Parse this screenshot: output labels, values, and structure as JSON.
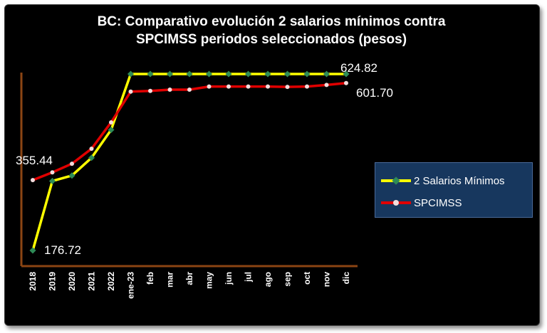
{
  "chart_data": {
    "type": "line",
    "title_lines": [
      "BC: Comparativo  evolución 2 salarios mínimos contra",
      "SPCIMSS periodos seleccionados (pesos)"
    ],
    "categories": [
      "2018",
      "2019",
      "2020",
      "2021",
      "2022",
      "ene-23",
      "feb",
      "mar",
      "abr",
      "may",
      "jun",
      "jul",
      "ago",
      "sep",
      "oct",
      "nov",
      "dic"
    ],
    "series": [
      {
        "name": "2 Salarios Mínimos",
        "color": "#ffff00",
        "marker_color": "#2e8b57",
        "values": [
          176.72,
          353.0,
          367.0,
          412.0,
          483.0,
          624.82,
          624.82,
          624.82,
          624.82,
          624.82,
          624.82,
          624.82,
          624.82,
          624.82,
          624.82,
          624.82,
          624.82
        ]
      },
      {
        "name": "SPCIMSS",
        "color": "#e00000",
        "marker_color": "#f2dcdc",
        "values": [
          355.44,
          375.0,
          397.0,
          435.0,
          502.0,
          580.0,
          582.0,
          585.0,
          585.0,
          593.0,
          593.0,
          593.0,
          593.0,
          592.0,
          593.0,
          597.0,
          601.7
        ]
      }
    ],
    "data_labels": [
      {
        "series": 0,
        "index": 0,
        "text": "176.72"
      },
      {
        "series": 1,
        "index": 0,
        "text": "355.44"
      },
      {
        "series": 0,
        "index": 16,
        "text": "624.82"
      },
      {
        "series": 1,
        "index": 16,
        "text": "601.70"
      }
    ],
    "ylim": [
      160,
      660
    ],
    "grid": false,
    "legend_position": "right"
  }
}
